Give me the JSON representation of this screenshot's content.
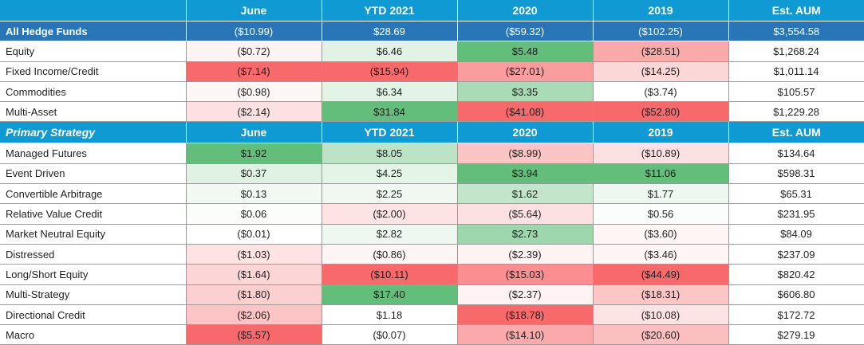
{
  "columns": [
    "June",
    "YTD 2021",
    "2020",
    "2019",
    "Est. AUM"
  ],
  "all_funds": {
    "label": "All Hedge Funds",
    "values": [
      "($10.99)",
      "$28.69",
      "($59.32)",
      "($102.25)",
      "$3,554.58"
    ]
  },
  "asset_rows": [
    {
      "label": "Equity",
      "values": [
        "($0.72)",
        "$6.46",
        "$5.48",
        "($28.51)",
        "$1,268.24"
      ],
      "colors": [
        "#fff3f3",
        "#e2f3e5",
        "#63be7b",
        "#fbaaaa",
        "#ffffff"
      ]
    },
    {
      "label": "Fixed Income/Credit",
      "values": [
        "($7.14)",
        "($15.94)",
        "($27.01)",
        "($14.25)",
        "$1,011.14"
      ],
      "colors": [
        "#f8696b",
        "#f8696b",
        "#fa9d9f",
        "#fcd7d7",
        "#ffffff"
      ]
    },
    {
      "label": "Commodities",
      "values": [
        "($0.98)",
        "$6.34",
        "$3.35",
        "($3.74)",
        "$105.57"
      ],
      "colors": [
        "#fff6f6",
        "#e3f4e6",
        "#a9dbb6",
        "#ffffff",
        "#ffffff"
      ]
    },
    {
      "label": "Multi-Asset",
      "values": [
        "($2.14)",
        "$31.84",
        "($41.08)",
        "($52.80)",
        "$1,229.28"
      ],
      "colors": [
        "#fde1e2",
        "#63be7b",
        "#f8696b",
        "#f8696b",
        "#ffffff"
      ]
    }
  ],
  "strategy_header": {
    "label": "Primary Strategy",
    "columns": [
      "June",
      "YTD 2021",
      "2020",
      "2019",
      "Est. AUM"
    ]
  },
  "strategy_rows": [
    {
      "label": "Managed Futures",
      "values": [
        "$1.92",
        "$8.05",
        "($8.99)",
        "($10.89)",
        "$134.64"
      ],
      "colors": [
        "#63be7b",
        "#bde3c6",
        "#fcc4c5",
        "#fde1e2",
        "#ffffff"
      ]
    },
    {
      "label": "Event Driven",
      "values": [
        "$0.37",
        "$4.25",
        "$3.94",
        "$11.06",
        "$598.31"
      ],
      "colors": [
        "#dff2e3",
        "#e4f4e7",
        "#63be7b",
        "#63be7b",
        "#ffffff"
      ]
    },
    {
      "label": "Convertible Arbitrage",
      "values": [
        "$0.13",
        "$2.25",
        "$1.62",
        "$1.77",
        "$65.31"
      ],
      "colors": [
        "#f2f9f3",
        "#f0f8f1",
        "#c3e6cb",
        "#eef8f0",
        "#ffffff"
      ]
    },
    {
      "label": "Relative Value Credit",
      "values": [
        "$0.06",
        "($2.00)",
        "($5.64)",
        "$0.56",
        "$231.95"
      ],
      "colors": [
        "#fbfdfb",
        "#fde3e3",
        "#fde1e2",
        "#fafdfb",
        "#ffffff"
      ]
    },
    {
      "label": "Market Neutral Equity",
      "values": [
        "($0.01)",
        "$2.82",
        "$2.73",
        "($3.60)",
        "$84.09"
      ],
      "colors": [
        "#ffffff",
        "#eef8f0",
        "#9ed6ad",
        "#fff5f5",
        "#ffffff"
      ]
    },
    {
      "label": "Distressed",
      "values": [
        "($1.03)",
        "($0.86)",
        "($2.39)",
        "($3.46)",
        "$237.09"
      ],
      "colors": [
        "#fde3e4",
        "#fff5f5",
        "#fff3f3",
        "#fff5f5",
        "#ffffff"
      ]
    },
    {
      "label": "Long/Short Equity",
      "values": [
        "($1.64)",
        "($10.11)",
        "($15.03)",
        "($44.49)",
        "$820.42"
      ],
      "colors": [
        "#fcd5d6",
        "#f8696b",
        "#fa8e90",
        "#f8696b",
        "#ffffff"
      ]
    },
    {
      "label": "Multi-Strategy",
      "values": [
        "($1.80)",
        "$17.40",
        "($2.37)",
        "($18.31)",
        "$606.80"
      ],
      "colors": [
        "#fcd0d1",
        "#63be7b",
        "#fff3f3",
        "#fcc6c7",
        "#ffffff"
      ]
    },
    {
      "label": "Directional Credit",
      "values": [
        "($2.06)",
        "$1.18",
        "($18.78)",
        "($10.08)",
        "$172.72"
      ],
      "colors": [
        "#fcc4c5",
        "#ffffff",
        "#f8696b",
        "#fde3e3",
        "#ffffff"
      ]
    },
    {
      "label": "Macro",
      "values": [
        "($5.57)",
        "($0.07)",
        "($14.10)",
        "($20.60)",
        "$279.19"
      ],
      "colors": [
        "#f8696b",
        "#ffffff",
        "#fbaaab",
        "#fcbebf",
        "#ffffff"
      ]
    }
  ]
}
